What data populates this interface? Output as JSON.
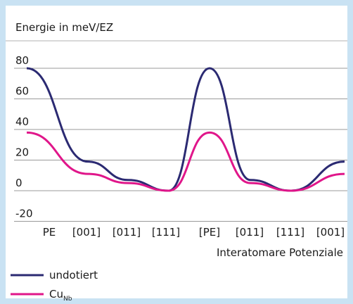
{
  "chart_data": {
    "type": "line",
    "ylabel": "Energie in meV/EZ",
    "xlabel": "Interatomare Potenziale",
    "categories": [
      "PE",
      "[001]",
      "[011]",
      "[111]",
      "[PE]",
      "[011]",
      "[111]",
      "[001]"
    ],
    "series": [
      {
        "name": "undotiert",
        "color": "#2b2a72",
        "values": [
          80,
          19,
          7,
          0,
          80,
          7,
          0,
          19
        ]
      },
      {
        "name": "Cu",
        "name_subscript": "Nb",
        "color": "#e0168a",
        "values": [
          38,
          11,
          5,
          0,
          38,
          5,
          0,
          11
        ]
      }
    ],
    "ylim": [
      -20,
      80
    ],
    "yticks": [
      -20,
      0,
      20,
      40,
      60,
      80
    ],
    "grid": true
  }
}
